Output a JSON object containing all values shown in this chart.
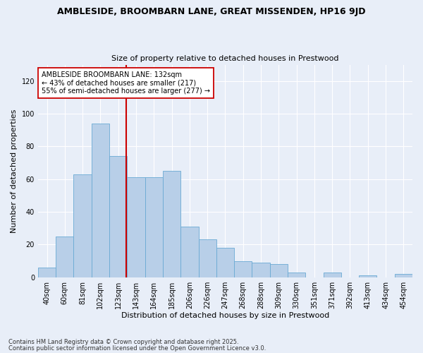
{
  "title_line1": "AMBLESIDE, BROOMBARN LANE, GREAT MISSENDEN, HP16 9JD",
  "title_line2": "Size of property relative to detached houses in Prestwood",
  "xlabel": "Distribution of detached houses by size in Prestwood",
  "ylabel": "Number of detached properties",
  "footnote1": "Contains HM Land Registry data © Crown copyright and database right 2025.",
  "footnote2": "Contains public sector information licensed under the Open Government Licence v3.0.",
  "annotation_line1": "AMBLESIDE BROOMBARN LANE: 132sqm",
  "annotation_line2": "← 43% of detached houses are smaller (217)",
  "annotation_line3": "55% of semi-detached houses are larger (277) →",
  "bar_labels": [
    "40sqm",
    "60sqm",
    "81sqm",
    "102sqm",
    "123sqm",
    "143sqm",
    "164sqm",
    "185sqm",
    "206sqm",
    "226sqm",
    "247sqm",
    "268sqm",
    "288sqm",
    "309sqm",
    "330sqm",
    "351sqm",
    "371sqm",
    "392sqm",
    "413sqm",
    "434sqm",
    "454sqm"
  ],
  "bar_values": [
    6,
    25,
    63,
    94,
    74,
    61,
    61,
    65,
    31,
    23,
    18,
    10,
    9,
    8,
    3,
    0,
    3,
    0,
    1,
    0,
    2
  ],
  "bar_color": "#b8cfe8",
  "bar_edge_color": "#6aaad4",
  "vline_color": "#cc0000",
  "ylim": [
    0,
    130
  ],
  "yticks": [
    0,
    20,
    40,
    60,
    80,
    100,
    120
  ],
  "background_color": "#e8eef8",
  "grid_color": "#ffffff",
  "annotation_box_color": "#ffffff",
  "annotation_box_edge": "#cc0000",
  "title_fontsize": 9,
  "subtitle_fontsize": 8,
  "axis_label_fontsize": 8,
  "tick_fontsize": 7,
  "annotation_fontsize": 7,
  "footnote_fontsize": 6
}
